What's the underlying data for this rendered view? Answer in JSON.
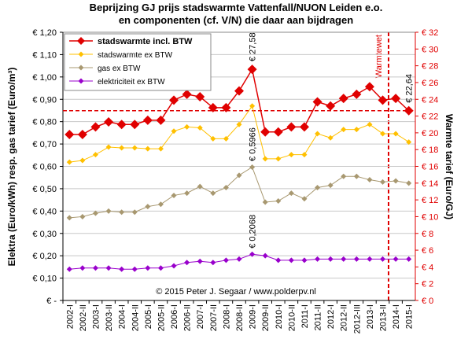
{
  "chart_data": {
    "type": "line",
    "title": "Beprijzing GJ prijs stadswarmte Vattenfall/NUON Leiden e.o.",
    "subtitle": "en componenten (cf. V/N) die daar aan bijdragen",
    "y_label": "Elektra (Euro/kWh) resp. gas tarief (Euro/m³)",
    "y2_label": "Warmte tarief (Euro/GJ)",
    "annotation": "Warmtewet",
    "credit": "© 2015 Peter J. Segaar / www.polderpv.nl",
    "categories": [
      "2002-I",
      "2002-II",
      "2003-I",
      "2003-II",
      "2004-I",
      "2004-II",
      "2005-I",
      "2005-II",
      "2006-I",
      "2006-II",
      "2007-I",
      "2007-II",
      "2008-I",
      "2008-II",
      "2009-I",
      "2009-II",
      "2010-I",
      "2010-II",
      "2011-I",
      "2011-II",
      "2012-I",
      "2012-II",
      "2012-III",
      "2013-I",
      "2013-II",
      "2014-I",
      "2015-I"
    ],
    "series": [
      {
        "name": "stadswarmte incl. BTW",
        "color": "#e00000",
        "axis": "y2",
        "values": [
          19.8,
          19.8,
          20.7,
          21.3,
          21.0,
          21.0,
          21.5,
          21.5,
          23.9,
          24.6,
          24.3,
          23.0,
          23.0,
          25.0,
          27.58,
          20.1,
          20.1,
          20.7,
          20.7,
          23.7,
          23.2,
          24.1,
          24.6,
          25.5,
          23.9,
          24.1,
          22.64
        ],
        "value_labels": [
          null,
          null,
          null,
          null,
          null,
          null,
          null,
          null,
          null,
          null,
          null,
          null,
          null,
          null,
          "€ 27,58",
          null,
          null,
          null,
          null,
          null,
          null,
          null,
          null,
          null,
          null,
          null,
          "€ 22,64"
        ]
      },
      {
        "name": "stadswarmte ex BTW",
        "color": "#ffc000",
        "axis": "y2",
        "values": [
          16.5,
          16.7,
          17.4,
          18.3,
          18.2,
          18.2,
          18.1,
          18.1,
          20.2,
          20.7,
          20.6,
          19.3,
          19.3,
          21.0,
          23.2,
          16.9,
          16.9,
          17.4,
          17.4,
          19.9,
          19.4,
          20.4,
          20.4,
          21.0,
          19.9,
          19.9,
          18.9
        ]
      },
      {
        "name": "gas ex BTW",
        "color": "#a89870",
        "axis": "y",
        "values": [
          0.37,
          0.375,
          0.39,
          0.4,
          0.395,
          0.395,
          0.42,
          0.43,
          0.47,
          0.48,
          0.51,
          0.48,
          0.505,
          0.56,
          0.5966,
          0.44,
          0.445,
          0.48,
          0.455,
          0.505,
          0.515,
          0.555,
          0.555,
          0.54,
          0.53,
          0.535,
          0.525
        ],
        "value_labels": [
          null,
          null,
          null,
          null,
          null,
          null,
          null,
          null,
          null,
          null,
          null,
          null,
          null,
          null,
          "€ 0,5966",
          null,
          null,
          null,
          null,
          null,
          null,
          null,
          null,
          null,
          null,
          null,
          null
        ]
      },
      {
        "name": "elektriciteit ex BTW",
        "color": "#9900cc",
        "axis": "y",
        "values": [
          0.14,
          0.145,
          0.145,
          0.145,
          0.14,
          0.14,
          0.145,
          0.145,
          0.155,
          0.17,
          0.175,
          0.17,
          0.18,
          0.185,
          0.2068,
          0.2,
          0.18,
          0.18,
          0.18,
          0.185,
          0.185,
          0.185,
          0.185,
          0.185,
          0.185,
          0.185,
          0.185
        ],
        "value_labels": [
          null,
          null,
          null,
          null,
          null,
          null,
          null,
          null,
          null,
          null,
          null,
          null,
          null,
          null,
          "€ 0,2068",
          null,
          null,
          null,
          null,
          null,
          null,
          null,
          null,
          null,
          null,
          null,
          null
        ]
      }
    ],
    "ylim": [
      0,
      1.2
    ],
    "yticks": [
      {
        "value": 0,
        "label": "€ -"
      },
      {
        "value": 0.1,
        "label": "€ 0,10"
      },
      {
        "value": 0.2,
        "label": "€ 0,20"
      },
      {
        "value": 0.3,
        "label": "€ 0,30"
      },
      {
        "value": 0.4,
        "label": "€ 0,40"
      },
      {
        "value": 0.5,
        "label": "€ 0,50"
      },
      {
        "value": 0.6,
        "label": "€ 0,60"
      },
      {
        "value": 0.7,
        "label": "€ 0,70"
      },
      {
        "value": 0.8,
        "label": "€ 0,80"
      },
      {
        "value": 0.9,
        "label": "€ 0,90"
      },
      {
        "value": 1.0,
        "label": "€ 1,00"
      },
      {
        "value": 1.1,
        "label": "€ 1,10"
      },
      {
        "value": 1.2,
        "label": "€ 1,20"
      }
    ],
    "y2lim": [
      0,
      32
    ],
    "y2ticks": [
      {
        "value": 0,
        "label": "€ 0"
      },
      {
        "value": 2,
        "label": "€ 2"
      },
      {
        "value": 4,
        "label": "€ 4"
      },
      {
        "value": 6,
        "label": "€ 6"
      },
      {
        "value": 8,
        "label": "€ 8"
      },
      {
        "value": 10,
        "label": "€ 10"
      },
      {
        "value": 12,
        "label": "€ 12"
      },
      {
        "value": 14,
        "label": "€ 14"
      },
      {
        "value": 16,
        "label": "€ 16"
      },
      {
        "value": 18,
        "label": "€ 18"
      },
      {
        "value": 20,
        "label": "€ 20"
      },
      {
        "value": 22,
        "label": "€ 22"
      },
      {
        "value": 24,
        "label": "€ 24"
      },
      {
        "value": 26,
        "label": "€ 26"
      },
      {
        "value": 28,
        "label": "€ 28"
      },
      {
        "value": 30,
        "label": "€ 30"
      },
      {
        "value": 32,
        "label": "€ 32"
      }
    ],
    "y2_color": "#e00000",
    "reference_line_y2": 22.64,
    "grid": true,
    "legend": "upper left"
  }
}
